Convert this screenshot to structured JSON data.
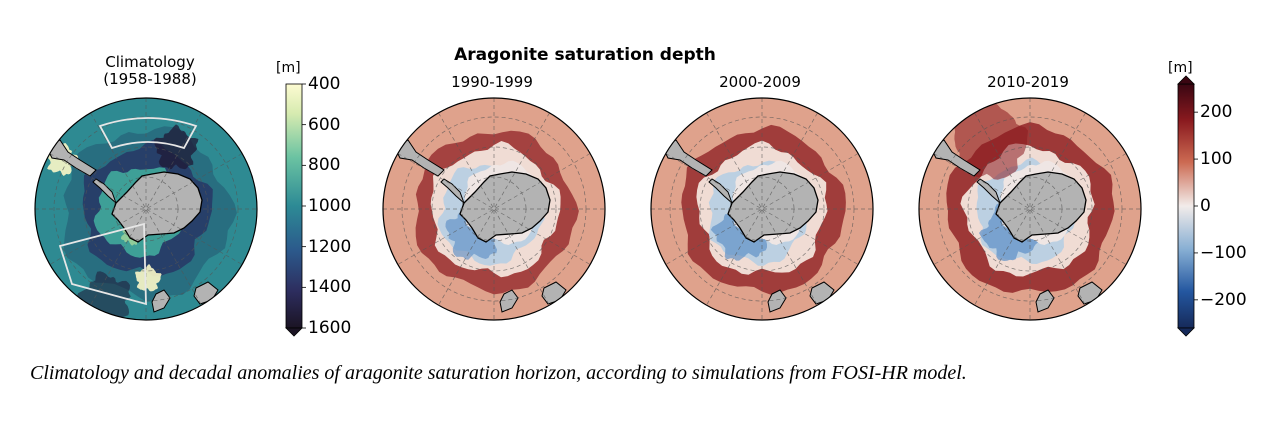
{
  "figure": {
    "main_title": "Aragonite saturation depth",
    "caption": "Climatology and decadal anomalies of aragonite saturation horizon, according to simulations from FOSI-HR model."
  },
  "colors": {
    "clim_shallow": "#fbf7c8",
    "clim_mid": "#2e9b9a",
    "clim_deep": "#1f1a36",
    "anom_positive": "#5c0a14",
    "anom_zero": "#f2ecea",
    "anom_negative": "#162f6a",
    "land": "#b3b3b3"
  },
  "chart_data": [
    {
      "type": "heatmap",
      "title": "Climatology\n(1958-1988)",
      "title_line1": "Climatology",
      "title_line2": "(1958-1988)",
      "projection": "south-polar stereographic",
      "colorbar": {
        "unit": "[m]",
        "ticks": [
          400,
          600,
          800,
          1000,
          1200,
          1400,
          1600
        ],
        "range": [
          400,
          1600
        ],
        "extend": "max",
        "reversed": true
      }
    },
    {
      "type": "heatmap",
      "title": "1990-1999",
      "projection": "south-polar stereographic",
      "shares_colorbar": "anomaly"
    },
    {
      "type": "heatmap",
      "title": "2000-2009",
      "projection": "south-polar stereographic",
      "shares_colorbar": "anomaly"
    },
    {
      "type": "heatmap",
      "title": "2010-2019",
      "projection": "south-polar stereographic",
      "colorbar": {
        "unit": "[m]",
        "ticks": [
          200,
          100,
          0,
          -100,
          -200
        ],
        "tick_labels": [
          "200",
          "100",
          "0",
          "−100",
          "−200"
        ],
        "range": [
          -260,
          260
        ],
        "extend": "both"
      }
    }
  ]
}
